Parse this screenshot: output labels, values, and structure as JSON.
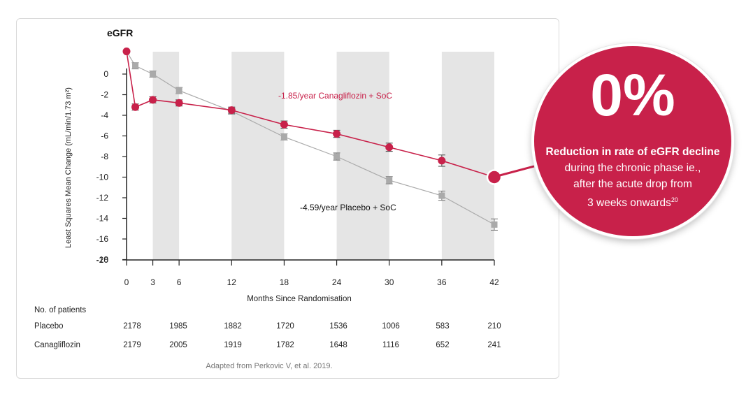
{
  "chart_data": {
    "type": "line",
    "title": "eGFR",
    "xlabel": "Months Since Randomisation",
    "ylabel": "Least Squares Mean Change (mL/min/1.73 m²)",
    "xlim": [
      0,
      42
    ],
    "ylim": [
      -20,
      2
    ],
    "x_ticks": [
      0,
      3,
      6,
      12,
      18,
      24,
      30,
      36,
      42
    ],
    "y_ticks": [
      0,
      -2,
      -4,
      -6,
      -8,
      -10,
      -12,
      -14,
      -16,
      -18,
      -20
    ],
    "shaded_bands": [
      [
        3,
        6
      ],
      [
        12,
        18
      ],
      [
        24,
        30
      ],
      [
        36,
        42
      ]
    ],
    "series": [
      {
        "name": "Placebo + SoC",
        "color": "#aaaaaa",
        "marker": "square",
        "x": [
          0,
          1,
          3,
          6,
          12,
          18,
          24,
          30,
          36,
          42
        ],
        "y": [
          2.2,
          0.8,
          0.0,
          -1.6,
          -3.6,
          -6.1,
          -8.0,
          -10.3,
          -11.8,
          -14.6
        ],
        "err": [
          0,
          0.3,
          0.3,
          0.3,
          0.3,
          0.3,
          0.35,
          0.35,
          0.45,
          0.55
        ]
      },
      {
        "name": "Canagliflozin + SoC",
        "color": "#c8214a",
        "marker": "circle",
        "x": [
          0,
          1,
          3,
          6,
          12,
          18,
          24,
          30,
          36,
          42
        ],
        "y": [
          2.2,
          -3.2,
          -2.5,
          -2.8,
          -3.5,
          -4.9,
          -5.8,
          -7.1,
          -8.4,
          -10.0
        ],
        "err": [
          0,
          0.3,
          0.3,
          0.3,
          0.3,
          0.35,
          0.35,
          0.4,
          0.55,
          0
        ]
      }
    ],
    "annotations": {
      "canagliflozin_label": "-1.85/year Canagliflozin + SoC",
      "placebo_label": "-4.59/year Placebo + SoC"
    }
  },
  "patients_table": {
    "header": "No. of patients",
    "rows": [
      {
        "label": "Placebo",
        "values": [
          "2178",
          "1985",
          "1882",
          "1720",
          "1536",
          "1006",
          "583",
          "210"
        ]
      },
      {
        "label": "Canagliflozin",
        "values": [
          "2179",
          "2005",
          "1919",
          "1782",
          "1648",
          "1116",
          "652",
          "241"
        ]
      }
    ]
  },
  "source_note": "Adapted from Perkovic V, et al. 2019.",
  "callout": {
    "big_value": "0%",
    "line1_bold": "Reduction in rate of eGFR decline",
    "line2": "during the chronic phase ie.,",
    "line3": "after the acute drop from",
    "line4": "3 weeks onwards",
    "superscript": "20",
    "color": "#c8214a"
  }
}
